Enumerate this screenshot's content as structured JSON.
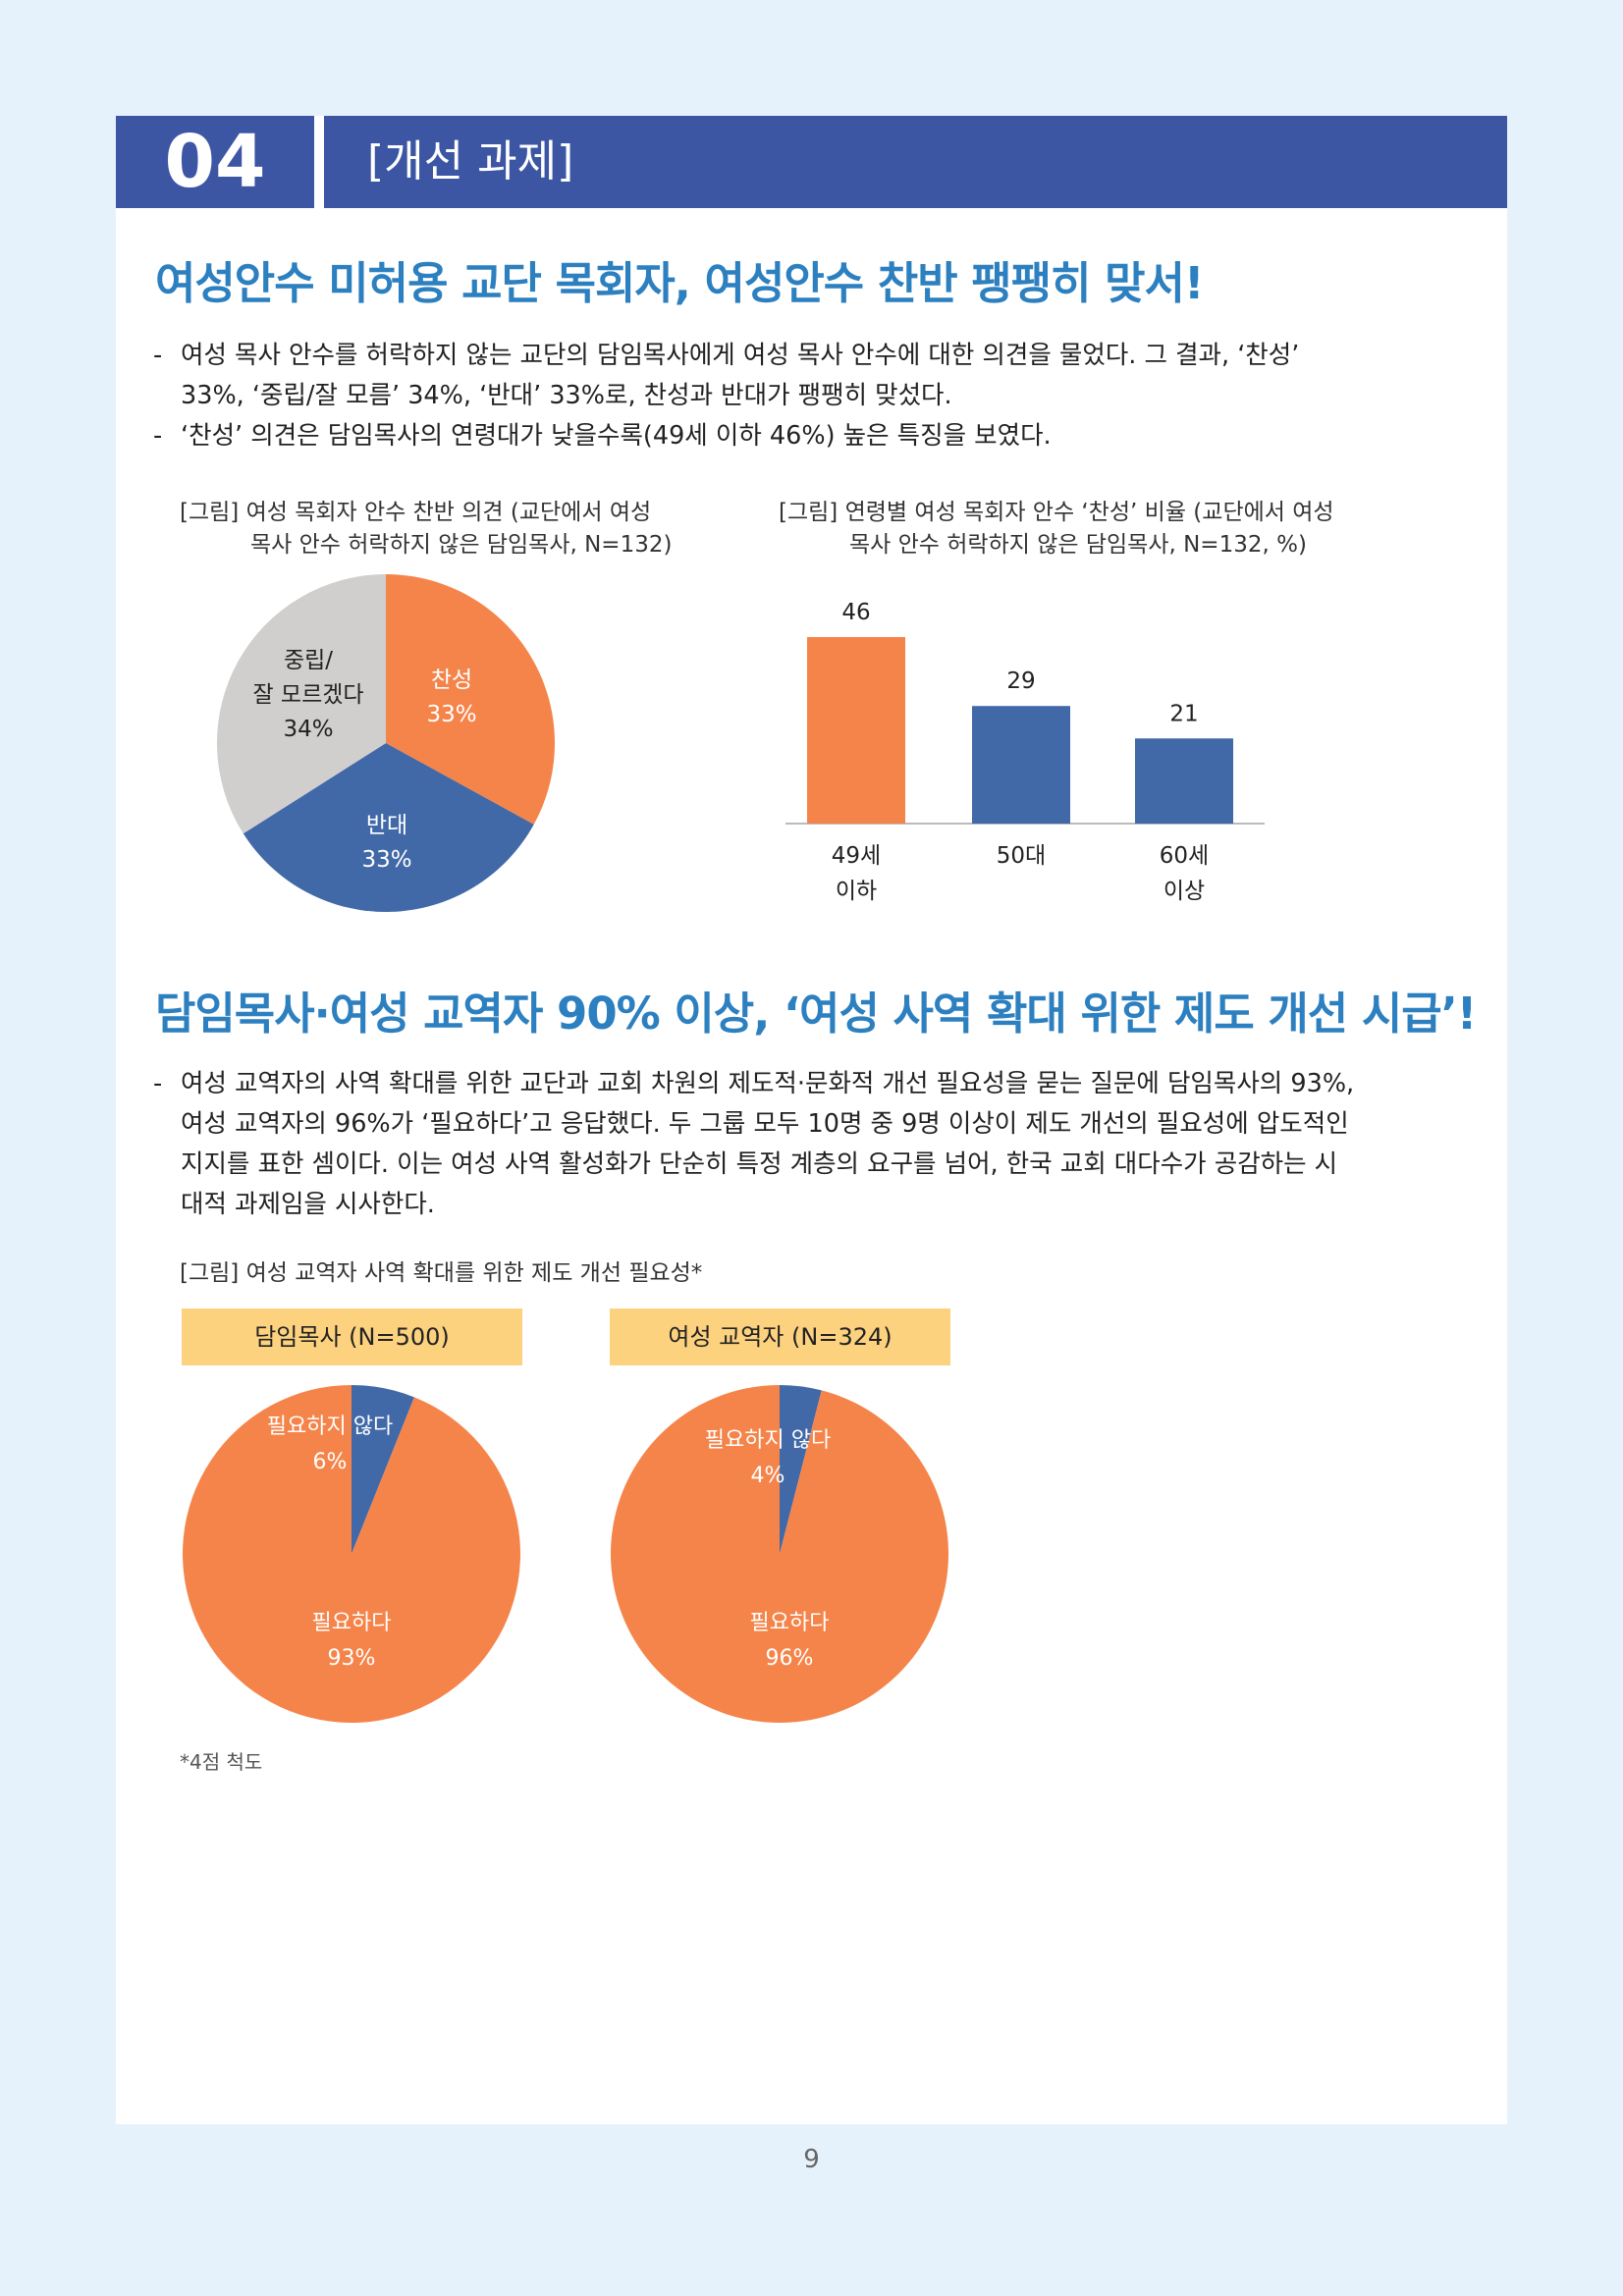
{
  "header": {
    "number": "04",
    "title": "[개선 과제]"
  },
  "section1": {
    "title": "여성안수 미허용 교단 목회자, 여성안수 찬반 팽팽히 맞서!",
    "bullets": [
      {
        "dash": "-",
        "lines": [
          "여성 목사 안수를 허락하지 않는 교단의 담임목사에게 여성 목사 안수에 대한 의견을 물었다. 그 결과, ‘찬성’",
          "33%, ‘중립/잘 모름’ 34%, ‘반대’ 33%로, 찬성과 반대가 팽팽히 맞섰다."
        ]
      },
      {
        "dash": "-",
        "lines": [
          "‘찬성’ 의견은 담임목사의 연령대가 낮을수록(49세 이하 46%) 높은 특징을 보였다."
        ]
      }
    ],
    "pie_caption": [
      "[그림] 여성 목회자 안수 찬반 의견 (교단에서 여성",
      "목사 안수 허락하지 않은 담임목사, N=132)"
    ],
    "bar_caption": [
      "[그림] 연령별 여성 목회자 안수 ‘찬성’ 비율 (교단에서 여성",
      "목사 안수 허락하지 않은 담임목사, N=132, %)"
    ]
  },
  "section2": {
    "title": "담임목사·여성 교역자 90% 이상, ‘여성 사역 확대 위한 제도 개선 시급’!",
    "bullets": [
      {
        "dash": "-",
        "lines": [
          "여성 교역자의 사역 확대를 위한 교단과 교회 차원의 제도적·문화적 개선 필요성을 묻는 질문에 담임목사의 93%,",
          "여성 교역자의 96%가 ‘필요하다’고 응답했다. 두 그룹 모두 10명 중 9명 이상이 제도 개선의 필요성에 압도적인",
          "지지를 표한 셈이다. 이는 여성 사역 활성화가 단순히 특정 계층의 요구를 넘어, 한국 교회 대다수가 공감하는 시",
          "대적 과제임을 시사한다."
        ]
      }
    ],
    "caption": "[그림] 여성 교역자 사역 확대를 위한 제도 개선 필요성*",
    "footnote": "*4점 척도"
  },
  "colors": {
    "header": "#3c56a4",
    "title": "#2d80c0",
    "orange": "#f5844a",
    "blue": "#4169a8",
    "gray": "#d0cfcd",
    "tag": "#fdd27f"
  },
  "chart_data": [
    {
      "type": "pie",
      "slices": [
        {
          "label": "찬성",
          "value": 33,
          "value_label": "33%",
          "color": "#f5844a"
        },
        {
          "label": "반대",
          "value": 33,
          "value_label": "33%",
          "color": "#4169a8"
        },
        {
          "label": "중립/\n잘 모르겠다",
          "value": 34,
          "value_label": "34%",
          "color": "#d0cfcd"
        }
      ]
    },
    {
      "type": "bar",
      "categories": [
        "49세\n이하",
        "50대",
        "60세\n이상"
      ],
      "values": [
        46,
        29,
        21
      ],
      "colors": [
        "#f5844a",
        "#4169a8",
        "#4169a8"
      ],
      "ylim": [
        0,
        50
      ]
    },
    {
      "type": "pie",
      "title": "담임목사 (N=500)",
      "slices": [
        {
          "label": "필요하지 않다",
          "value": 6,
          "value_label": "6%",
          "color": "#4169a8"
        },
        {
          "label": "필요하다",
          "value": 93,
          "value_label": "93%",
          "color": "#f5844a"
        }
      ]
    },
    {
      "type": "pie",
      "title": "여성 교역자 (N=324)",
      "slices": [
        {
          "label": "필요하지 않다",
          "value": 4,
          "value_label": "4%",
          "color": "#4169a8"
        },
        {
          "label": "필요하다",
          "value": 96,
          "value_label": "96%",
          "color": "#f5844a"
        }
      ]
    }
  ],
  "page_number": "9"
}
